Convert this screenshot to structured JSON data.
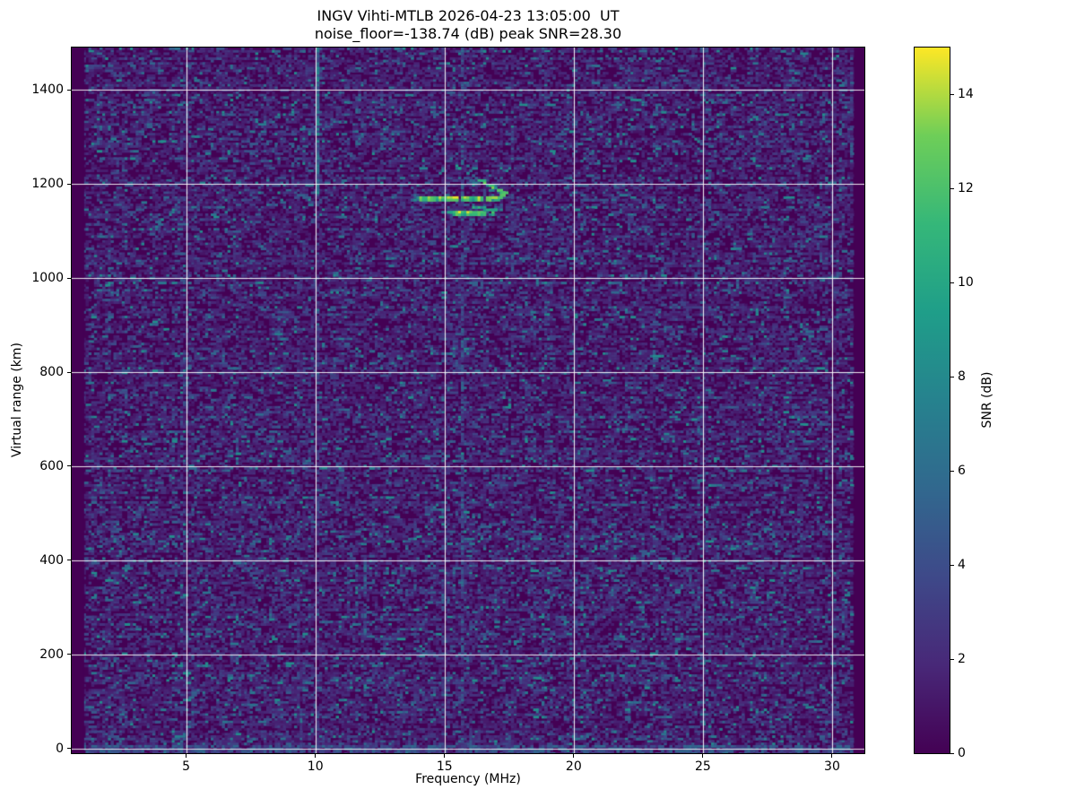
{
  "window": {
    "title": "INGV Vihti-MTLB ionogram",
    "background": "#ffffff"
  },
  "chart_data": {
    "type": "heatmap",
    "title": "INGV Vihti-MTLB 2026-04-23 13:05:00  UT",
    "subtitle": "noise_floor=-138.74 (dB) peak SNR=28.30",
    "xlabel": "Frequency (MHz)",
    "ylabel": "Virtual range (km)",
    "colorbar_label": "SNR (dB)",
    "station": "INGV Vihti-MTLB",
    "timestamp": "2026-04-23 13:05:00 UT",
    "noise_floor_db": -138.74,
    "peak_snr_db": 28.3,
    "xlim": [
      0.57,
      31.25
    ],
    "ylim": [
      -10,
      1490
    ],
    "clim": [
      0,
      15
    ],
    "xticks": [
      5,
      10,
      15,
      20,
      25,
      30
    ],
    "yticks": [
      0,
      200,
      400,
      600,
      800,
      1000,
      1200,
      1400
    ],
    "colorbar_ticks": [
      0,
      2,
      4,
      6,
      8,
      10,
      12,
      14
    ],
    "grid": true,
    "grid_color": "rgba(255,255,255,0.9)",
    "background_value_color": "#440154",
    "data_freq_range": [
      1.05,
      30.85
    ],
    "colormap": {
      "name": "viridis",
      "stops": [
        [
          0.0,
          "#440154"
        ],
        [
          0.125,
          "#482878"
        ],
        [
          0.25,
          "#3e4989"
        ],
        [
          0.375,
          "#31688e"
        ],
        [
          0.5,
          "#26828e"
        ],
        [
          0.625,
          "#1f9e89"
        ],
        [
          0.75,
          "#35b779"
        ],
        [
          0.875,
          "#6ece58"
        ],
        [
          1.0,
          "#fde725"
        ]
      ]
    },
    "noise": {
      "cell_w": 3.1,
      "cell_h": 2.72,
      "exp_mean": 1.5,
      "visible_threshold": 0.95,
      "teal_pop_prob": 0.02,
      "teal_pop_range": [
        4.0,
        7.5
      ],
      "row_gain": [
        0.7,
        1.35
      ],
      "col_gain": [
        0.85,
        1.15
      ],
      "seed": 20260423
    },
    "ground_band": {
      "km_from": -10,
      "km_to": 5,
      "density": 0.55,
      "boost": 4.0
    },
    "rfi_stripes": [
      {
        "mhz": 5.8,
        "km_from": -10,
        "km_to": 1490,
        "density": 0.1,
        "boost": 2.0
      },
      {
        "mhz": 6.3,
        "km_from": -10,
        "km_to": 1490,
        "density": 0.13,
        "boost": 2.3
      },
      {
        "mhz": 7.15,
        "km_from": -10,
        "km_to": 1490,
        "density": 0.07,
        "boost": 1.8
      },
      {
        "mhz": 8.0,
        "km_from": -10,
        "km_to": 1490,
        "density": 0.09,
        "boost": 2.0
      },
      {
        "mhz": 8.85,
        "km_from": -10,
        "km_to": 1490,
        "density": 0.13,
        "boost": 2.3
      },
      {
        "mhz": 9.35,
        "km_from": 100,
        "km_to": 1100,
        "density": 0.3,
        "boost": 3.0
      },
      {
        "mhz": 9.35,
        "km_from": -10,
        "km_to": 1490,
        "density": 0.1,
        "boost": 2.0
      },
      {
        "mhz": 10.05,
        "km_from": 1180,
        "km_to": 1488,
        "density": 0.97,
        "boost": 6.0
      },
      {
        "mhz": 10.05,
        "km_from": -10,
        "km_to": 1180,
        "density": 0.32,
        "boost": 3.0
      },
      {
        "mhz": 10.6,
        "km_from": -10,
        "km_to": 1490,
        "density": 0.1,
        "boost": 2.0
      },
      {
        "mhz": 11.45,
        "km_from": -10,
        "km_to": 1490,
        "density": 0.11,
        "boost": 2.2
      },
      {
        "mhz": 11.9,
        "km_from": 230,
        "km_to": 400,
        "density": 0.75,
        "boost": 4.5
      },
      {
        "mhz": 11.9,
        "km_from": -10,
        "km_to": 1490,
        "density": 0.14,
        "boost": 2.3
      },
      {
        "mhz": 12.9,
        "km_from": -10,
        "km_to": 1490,
        "density": 0.1,
        "boost": 2.0
      },
      {
        "mhz": 13.4,
        "km_from": 700,
        "km_to": 1490,
        "density": 0.12,
        "boost": 2.2
      },
      {
        "mhz": 13.85,
        "km_from": -10,
        "km_to": 1490,
        "density": 0.18,
        "boost": 2.6
      },
      {
        "mhz": 14.35,
        "km_from": -10,
        "km_to": 1490,
        "density": 0.1,
        "boost": 2.0
      },
      {
        "mhz": 15.1,
        "km_from": -10,
        "km_to": 1490,
        "density": 0.12,
        "boost": 2.2
      },
      {
        "mhz": 15.65,
        "km_from": -10,
        "km_to": 1490,
        "density": 0.55,
        "boost": 4.2
      },
      {
        "mhz": 16.05,
        "km_from": -10,
        "km_to": 1490,
        "density": 0.18,
        "boost": 2.5
      },
      {
        "mhz": 16.55,
        "km_from": -10,
        "km_to": 1490,
        "density": 0.1,
        "boost": 2.0
      },
      {
        "mhz": 17.6,
        "km_from": 1020,
        "km_to": 1310,
        "density": 0.45,
        "boost": 3.8
      },
      {
        "mhz": 17.6,
        "km_from": -10,
        "km_to": 1490,
        "density": 0.12,
        "boost": 2.2
      },
      {
        "mhz": 18.3,
        "km_from": -10,
        "km_to": 1490,
        "density": 0.09,
        "boost": 2.0
      },
      {
        "mhz": 18.95,
        "km_from": -10,
        "km_to": 1490,
        "density": 0.14,
        "boost": 2.3
      },
      {
        "mhz": 19.75,
        "km_from": -10,
        "km_to": 1490,
        "density": 0.08,
        "boost": 1.9
      },
      {
        "mhz": 21.35,
        "km_from": -10,
        "km_to": 1490,
        "density": 0.11,
        "boost": 2.1
      },
      {
        "mhz": 22.75,
        "km_from": 1300,
        "km_to": 1480,
        "density": 0.35,
        "boost": 3.2
      },
      {
        "mhz": 23.5,
        "km_from": -10,
        "km_to": 1490,
        "density": 0.08,
        "boost": 1.9
      },
      {
        "mhz": 24.3,
        "km_from": -10,
        "km_to": 1490,
        "density": 0.08,
        "boost": 1.9
      },
      {
        "mhz": 26.5,
        "km_from": -10,
        "km_to": 1490,
        "density": 0.08,
        "boost": 1.9
      },
      {
        "mhz": 27.9,
        "km_from": -10,
        "km_to": 1490,
        "density": 0.08,
        "boost": 1.9
      },
      {
        "mhz": 28.8,
        "km_from": 300,
        "km_to": 700,
        "density": 0.2,
        "boost": 2.6
      },
      {
        "mhz": 30.75,
        "km_from": 1240,
        "km_to": 1480,
        "density": 0.45,
        "boost": 3.6
      },
      {
        "mhz": 30.75,
        "km_from": -10,
        "km_to": 1490,
        "density": 0.1,
        "boost": 2.0
      }
    ],
    "echo_trace": {
      "description": "F-region echo: O-mode trace with cusp near 17.3 MHz at ~1170 km plus second (X-mode) trace at ~1141 km",
      "segments": [
        {
          "pts": [
            [
              13.72,
              1168
            ],
            [
              14.05,
              1169
            ]
          ],
          "rows": 1,
          "prob": 0.45,
          "v": [
            5,
            9
          ]
        },
        {
          "pts": [
            [
              14.05,
              1169
            ],
            [
              16.05,
              1169
            ]
          ],
          "rows": 2,
          "prob": 0.93,
          "v": [
            11,
            15
          ]
        },
        {
          "pts": [
            [
              16.05,
              1169
            ],
            [
              16.95,
              1170
            ]
          ],
          "rows": 2,
          "prob": 0.82,
          "v": [
            9,
            15
          ]
        },
        {
          "pts": [
            [
              15.33,
              1239
            ],
            [
              15.81,
              1228
            ],
            [
              16.33,
              1210
            ]
          ],
          "rows": 1,
          "prob": 0.6,
          "v": [
            5,
            10
          ]
        },
        {
          "pts": [
            [
              16.33,
              1210
            ],
            [
              16.78,
              1197
            ],
            [
              17.13,
              1186
            ],
            [
              17.34,
              1179
            ]
          ],
          "rows": 1,
          "prob": 0.8,
          "v": [
            8,
            15
          ]
        },
        {
          "pts": [
            [
              17.34,
              1179
            ],
            [
              17.08,
              1172
            ],
            [
              16.82,
              1169
            ]
          ],
          "rows": 1,
          "prob": 0.85,
          "v": [
            10,
            15
          ]
        },
        {
          "pts": [
            [
              15.6,
              1218
            ],
            [
              16.35,
              1200
            ],
            [
              16.8,
              1189
            ]
          ],
          "rows": 1,
          "prob": 0.3,
          "v": [
            4,
            8
          ]
        },
        {
          "pts": [
            [
              14.9,
              1142
            ],
            [
              15.32,
              1141
            ]
          ],
          "rows": 1,
          "prob": 0.5,
          "v": [
            6,
            10
          ]
        },
        {
          "pts": [
            [
              15.32,
              1141
            ],
            [
              16.88,
              1141
            ]
          ],
          "rows": 2,
          "prob": 0.85,
          "v": [
            10,
            15
          ]
        },
        {
          "pts": [
            [
              16.88,
              1142
            ],
            [
              17.16,
              1145
            ]
          ],
          "rows": 1,
          "prob": 0.5,
          "v": [
            7,
            11
          ]
        },
        {
          "pts": [
            [
              16.1,
              1152
            ],
            [
              16.6,
              1147
            ],
            [
              17.0,
              1144
            ]
          ],
          "rows": 1,
          "prob": 0.55,
          "v": [
            7,
            11
          ]
        },
        {
          "pts": [
            [
              15.85,
              1237
            ],
            [
              16.15,
              1232
            ]
          ],
          "rows": 1,
          "prob": 0.3,
          "v": [
            5,
            8
          ]
        }
      ]
    }
  }
}
